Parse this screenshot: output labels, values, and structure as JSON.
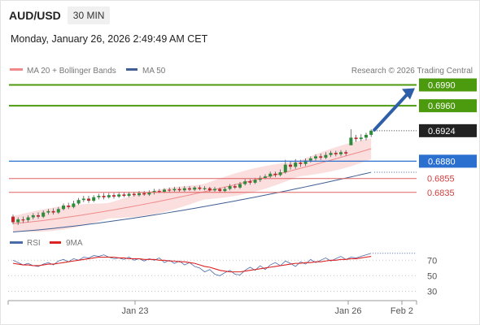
{
  "header": {
    "symbol": "AUD/USD",
    "timeframe": "30 MIN",
    "datetime": "Monday, January 26, 2026 2:49:49 AM CET"
  },
  "legend": {
    "bollinger": "MA 20 + Bollinger Bands",
    "ma50": "MA 50",
    "credit": "Research © 2026 Trading Central",
    "rsi": "RSI",
    "rsi_ma": "9MA"
  },
  "colors": {
    "candle_up": "#2e8b3a",
    "candle_down": "#c0262c",
    "ma20": "#f08a8a",
    "bands_fill": "#fbdede",
    "ma50": "#3f5f95",
    "target_green": "#4c9a0e",
    "pivot_blue": "#2b6fcf",
    "support_red": "#e06060",
    "last_price_bg": "#222222",
    "arrow": "#2f5fa8",
    "rsi_line": "#4a6aa8",
    "rsi_ma_line": "#dd2222"
  },
  "chart_data": [
    {
      "type": "candlestick",
      "title": "",
      "xlabel": "",
      "ylabel": "",
      "x_ticks": [
        "Jan 23",
        "Jan 26",
        "Feb 2"
      ],
      "ylim": [
        0.6775,
        0.7
      ],
      "levels": [
        {
          "label": "0.6990",
          "value": 0.699,
          "kind": "resistance"
        },
        {
          "label": "0.6960",
          "value": 0.696,
          "kind": "resistance"
        },
        {
          "label": "0.6924",
          "value": 0.6924,
          "kind": "last"
        },
        {
          "label": "0.6880",
          "value": 0.688,
          "kind": "pivot"
        },
        {
          "label": "0.6855",
          "value": 0.6855,
          "kind": "support"
        },
        {
          "label": "0.6835",
          "value": 0.6835,
          "kind": "support"
        }
      ],
      "series": [
        {
          "name": "MA 50",
          "start": 0.6778,
          "end": 0.6864
        },
        {
          "name": "MA 20 + Bollinger Bands",
          "start": 0.679,
          "end": 0.6898
        }
      ],
      "candles": [
        [
          0.68,
          0.6792,
          0.6803,
          0.6789
        ],
        [
          0.6792,
          0.6796,
          0.6799,
          0.6788
        ],
        [
          0.6796,
          0.6795,
          0.68,
          0.6791
        ],
        [
          0.6795,
          0.6799,
          0.6802,
          0.6792
        ],
        [
          0.6799,
          0.6802,
          0.6805,
          0.6796
        ],
        [
          0.6802,
          0.68,
          0.6806,
          0.6797
        ],
        [
          0.68,
          0.6806,
          0.6809,
          0.6798
        ],
        [
          0.6806,
          0.6808,
          0.6811,
          0.6803
        ],
        [
          0.6808,
          0.6806,
          0.6812,
          0.6803
        ],
        [
          0.6806,
          0.6811,
          0.6814,
          0.6804
        ],
        [
          0.6811,
          0.6816,
          0.6819,
          0.6809
        ],
        [
          0.6816,
          0.6814,
          0.682,
          0.6811
        ],
        [
          0.6814,
          0.6819,
          0.6823,
          0.6812
        ],
        [
          0.6819,
          0.6824,
          0.6827,
          0.6817
        ],
        [
          0.6824,
          0.6826,
          0.683,
          0.6821
        ],
        [
          0.6826,
          0.6823,
          0.683,
          0.682
        ],
        [
          0.6823,
          0.6828,
          0.6831,
          0.6821
        ],
        [
          0.6828,
          0.683,
          0.6833,
          0.6825
        ],
        [
          0.683,
          0.6828,
          0.6834,
          0.6825
        ],
        [
          0.6828,
          0.6831,
          0.6834,
          0.6826
        ],
        [
          0.6831,
          0.6829,
          0.6834,
          0.6826
        ],
        [
          0.6829,
          0.6832,
          0.6835,
          0.6827
        ],
        [
          0.6832,
          0.683,
          0.6835,
          0.6828
        ],
        [
          0.683,
          0.6833,
          0.6836,
          0.6828
        ],
        [
          0.6833,
          0.6831,
          0.6836,
          0.6829
        ],
        [
          0.6831,
          0.6834,
          0.6837,
          0.6829
        ],
        [
          0.6834,
          0.6832,
          0.6837,
          0.683
        ],
        [
          0.6832,
          0.6835,
          0.6838,
          0.683
        ],
        [
          0.6835,
          0.6837,
          0.684,
          0.6832
        ],
        [
          0.6837,
          0.6836,
          0.684,
          0.6834
        ],
        [
          0.6836,
          0.6839,
          0.6841,
          0.6834
        ],
        [
          0.6839,
          0.6838,
          0.6842,
          0.6835
        ],
        [
          0.6838,
          0.684,
          0.6843,
          0.6836
        ],
        [
          0.684,
          0.6838,
          0.6843,
          0.6836
        ],
        [
          0.6838,
          0.6841,
          0.6844,
          0.6836
        ],
        [
          0.6841,
          0.6839,
          0.6844,
          0.6837
        ],
        [
          0.6839,
          0.6842,
          0.6844,
          0.6837
        ],
        [
          0.6842,
          0.684,
          0.6845,
          0.6838
        ],
        [
          0.684,
          0.6841,
          0.6844,
          0.6838
        ],
        [
          0.6841,
          0.6838,
          0.6843,
          0.6836
        ],
        [
          0.6838,
          0.684,
          0.6843,
          0.6836
        ],
        [
          0.684,
          0.6837,
          0.6842,
          0.6835
        ],
        [
          0.6837,
          0.684,
          0.6843,
          0.6835
        ],
        [
          0.684,
          0.6844,
          0.6847,
          0.6838
        ],
        [
          0.6844,
          0.6842,
          0.6847,
          0.684
        ],
        [
          0.6842,
          0.6847,
          0.685,
          0.684
        ],
        [
          0.6847,
          0.6851,
          0.6854,
          0.6845
        ],
        [
          0.6851,
          0.6849,
          0.6854,
          0.6846
        ],
        [
          0.6849,
          0.6853,
          0.6856,
          0.6847
        ],
        [
          0.6853,
          0.6856,
          0.6859,
          0.685
        ],
        [
          0.6856,
          0.6858,
          0.6861,
          0.6854
        ],
        [
          0.6858,
          0.6862,
          0.6865,
          0.6856
        ],
        [
          0.6862,
          0.686,
          0.6865,
          0.6857
        ],
        [
          0.686,
          0.6864,
          0.6868,
          0.6858
        ],
        [
          0.6864,
          0.6875,
          0.6882,
          0.6862
        ],
        [
          0.6875,
          0.6872,
          0.688,
          0.6868
        ],
        [
          0.6872,
          0.6878,
          0.6883,
          0.6869
        ],
        [
          0.6878,
          0.6876,
          0.6882,
          0.6872
        ],
        [
          0.6876,
          0.6881,
          0.6884,
          0.6873
        ],
        [
          0.6881,
          0.6884,
          0.6887,
          0.6878
        ],
        [
          0.6884,
          0.6887,
          0.689,
          0.6881
        ],
        [
          0.6887,
          0.6885,
          0.6891,
          0.6882
        ],
        [
          0.6885,
          0.6889,
          0.6893,
          0.6883
        ],
        [
          0.6889,
          0.6892,
          0.6895,
          0.6886
        ],
        [
          0.6892,
          0.689,
          0.6895,
          0.6887
        ],
        [
          0.689,
          0.6893,
          0.6896,
          0.6887
        ],
        [
          0.6893,
          0.6891,
          0.6896,
          0.6888
        ],
        [
          0.6903,
          0.6914,
          0.6926,
          0.6912
        ],
        [
          0.6914,
          0.6912,
          0.6918,
          0.6908
        ],
        [
          0.6912,
          0.6914,
          0.6919,
          0.6909
        ],
        [
          0.6914,
          0.6918,
          0.6921,
          0.691
        ],
        [
          0.6918,
          0.6924,
          0.6926,
          0.6915
        ]
      ]
    },
    {
      "type": "line",
      "title": "",
      "xlabel": "",
      "ylabel": "",
      "ylim": [
        20,
        85
      ],
      "y_ticks": [
        30,
        50,
        70
      ],
      "series": [
        {
          "name": "RSI",
          "values": [
            70,
            67,
            64,
            66,
            63,
            62,
            65,
            67,
            64,
            69,
            71,
            68,
            72,
            70,
            74,
            73,
            76,
            75,
            77,
            74,
            72,
            73,
            71,
            74,
            70,
            72,
            69,
            72,
            70,
            73,
            67,
            70,
            66,
            69,
            64,
            67,
            62,
            60,
            55,
            58,
            52,
            50,
            54,
            57,
            52,
            51,
            57,
            61,
            57,
            63,
            58,
            64,
            67,
            63,
            69,
            66,
            62,
            68,
            65,
            71,
            67,
            70,
            73,
            69,
            72,
            75,
            71,
            74,
            73,
            75,
            77,
            79
          ]
        },
        {
          "name": "9MA",
          "values": [
            66,
            65,
            64,
            64,
            63,
            63,
            64,
            65,
            65,
            66,
            67,
            68,
            69,
            70,
            71,
            72,
            73,
            74,
            74,
            74,
            74,
            73,
            73,
            72,
            72,
            72,
            71,
            71,
            71,
            70,
            70,
            69,
            69,
            68,
            68,
            67,
            66,
            64,
            62,
            61,
            59,
            57,
            56,
            55,
            55,
            55,
            56,
            57,
            58,
            59,
            60,
            61,
            62,
            63,
            64,
            65,
            66,
            66,
            67,
            67,
            68,
            68,
            69,
            70,
            70,
            71,
            71,
            72,
            72,
            73,
            74,
            75
          ]
        }
      ]
    }
  ]
}
